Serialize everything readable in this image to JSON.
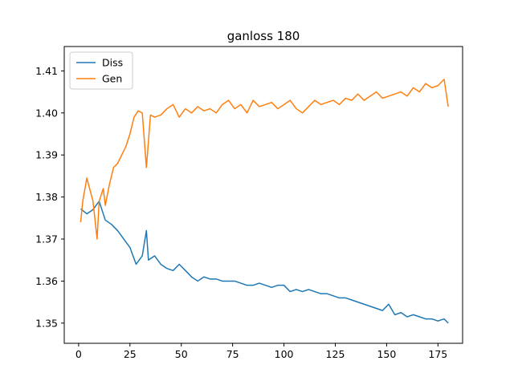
{
  "chart_data": {
    "type": "line",
    "title": "ganloss 180",
    "xlim": [
      -7,
      187
    ],
    "ylim": [
      1.3452,
      1.4158
    ],
    "xticks": [
      0,
      25,
      50,
      75,
      100,
      125,
      150,
      175
    ],
    "yticks": [
      1.35,
      1.36,
      1.37,
      1.38,
      1.39,
      1.4,
      1.41
    ],
    "ytick_labels": [
      "1.35",
      "1.36",
      "1.37",
      "1.38",
      "1.39",
      "1.40",
      "1.41"
    ],
    "grid": false,
    "legend_position": "upper-left",
    "series": [
      {
        "name": "Diss",
        "color": "#1f77b4",
        "x": [
          1,
          4,
          7,
          10,
          13,
          16,
          19,
          22,
          25,
          28,
          31,
          33,
          34,
          37,
          40,
          43,
          46,
          49,
          52,
          55,
          58,
          61,
          64,
          67,
          70,
          73,
          76,
          79,
          82,
          85,
          88,
          91,
          94,
          97,
          100,
          103,
          106,
          109,
          112,
          115,
          118,
          121,
          124,
          127,
          130,
          133,
          136,
          139,
          142,
          145,
          148,
          151,
          154,
          157,
          160,
          163,
          166,
          169,
          172,
          175,
          178,
          180
        ],
        "values": [
          1.3772,
          1.376,
          1.377,
          1.379,
          1.3745,
          1.3735,
          1.372,
          1.37,
          1.368,
          1.364,
          1.366,
          1.372,
          1.365,
          1.366,
          1.364,
          1.363,
          1.3625,
          1.364,
          1.3625,
          1.361,
          1.36,
          1.361,
          1.3605,
          1.3605,
          1.36,
          1.36,
          1.36,
          1.3595,
          1.359,
          1.359,
          1.3595,
          1.359,
          1.3585,
          1.359,
          1.359,
          1.3575,
          1.358,
          1.3575,
          1.358,
          1.3575,
          1.357,
          1.357,
          1.3565,
          1.356,
          1.356,
          1.3555,
          1.355,
          1.3545,
          1.354,
          1.3535,
          1.353,
          1.3545,
          1.352,
          1.3525,
          1.3515,
          1.352,
          1.3515,
          1.351,
          1.351,
          1.3505,
          1.351,
          1.35
        ]
      },
      {
        "name": "Gen",
        "color": "#ff7f0e",
        "x": [
          1,
          2,
          4,
          7,
          9,
          10,
          12,
          13,
          15,
          17,
          19,
          21,
          23,
          25,
          27,
          29,
          31,
          33,
          35,
          37,
          40,
          43,
          46,
          49,
          52,
          55,
          58,
          61,
          64,
          67,
          70,
          73,
          76,
          79,
          82,
          85,
          88,
          91,
          94,
          97,
          100,
          103,
          106,
          109,
          112,
          115,
          118,
          121,
          124,
          127,
          130,
          133,
          136,
          139,
          142,
          145,
          148,
          151,
          154,
          157,
          160,
          163,
          166,
          169,
          172,
          175,
          178,
          180
        ],
        "values": [
          1.374,
          1.379,
          1.3845,
          1.379,
          1.37,
          1.379,
          1.382,
          1.378,
          1.383,
          1.387,
          1.388,
          1.39,
          1.392,
          1.395,
          1.399,
          1.4005,
          1.4,
          1.387,
          1.3995,
          1.399,
          1.3995,
          1.401,
          1.402,
          1.399,
          1.401,
          1.4,
          1.4015,
          1.4005,
          1.401,
          1.4,
          1.402,
          1.403,
          1.401,
          1.402,
          1.4,
          1.403,
          1.4015,
          1.402,
          1.4025,
          1.401,
          1.402,
          1.403,
          1.401,
          1.4,
          1.4015,
          1.403,
          1.402,
          1.4025,
          1.403,
          1.402,
          1.4035,
          1.403,
          1.4045,
          1.403,
          1.404,
          1.405,
          1.4035,
          1.404,
          1.4045,
          1.405,
          1.404,
          1.406,
          1.405,
          1.407,
          1.406,
          1.4065,
          1.408,
          1.4015
        ]
      }
    ]
  }
}
